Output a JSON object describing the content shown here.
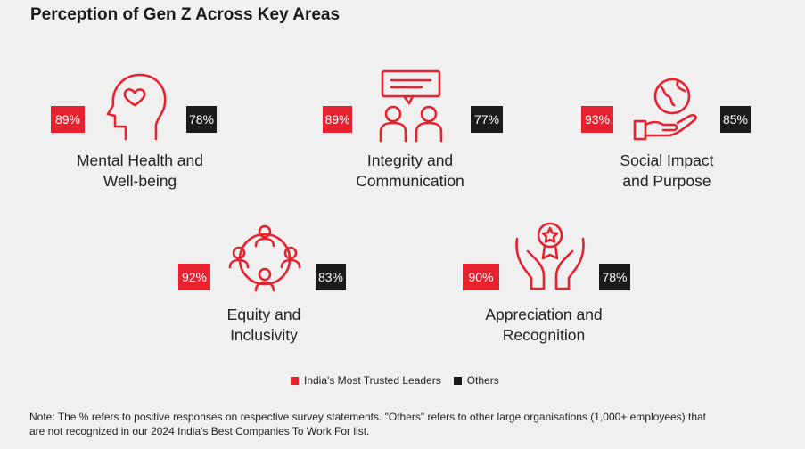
{
  "title": "Perception of Gen Z Across Key Areas",
  "colors": {
    "trusted": "#e8212e",
    "others": "#1b1b1b"
  },
  "chart_data": {
    "type": "table",
    "title": "Perception of Gen Z Across Key Areas",
    "categories": [
      "Mental Health and Well-being",
      "Integrity and Communication",
      "Social Impact and Purpose",
      "Equity and Inclusivity",
      "Appreciation and Recognition"
    ],
    "series": [
      {
        "name": "India's Most Trusted Leaders",
        "values": [
          89,
          89,
          93,
          92,
          90
        ]
      },
      {
        "name": "Others",
        "values": [
          78,
          77,
          85,
          83,
          78
        ]
      }
    ],
    "unit": "%"
  },
  "cards": [
    {
      "line1": "Mental Health and",
      "line2": "Well-being",
      "trusted": "89%",
      "others": "78%",
      "icon": "head-heart-icon"
    },
    {
      "line1": "Integrity and",
      "line2": "Communication",
      "trusted": "89%",
      "others": "77%",
      "icon": "people-speech-icon"
    },
    {
      "line1": "Social Impact",
      "line2": "and Purpose",
      "trusted": "93%",
      "others": "85%",
      "icon": "hand-globe-icon"
    },
    {
      "line1": "Equity and",
      "line2": "Inclusivity",
      "trusted": "92%",
      "others": "83%",
      "icon": "people-circle-icon"
    },
    {
      "line1": "Appreciation and",
      "line2": "Recognition",
      "trusted": "90%",
      "others": "78%",
      "icon": "hands-medal-icon"
    }
  ],
  "legend": {
    "trusted": "India's Most Trusted Leaders",
    "others": "Others"
  },
  "note": {
    "line1": "Note: The % refers to positive responses on respective survey statements. \"Others\" refers to other large organisations (1,000+ employees) that",
    "line2": "are not recognized in our 2024 India's Best Companies To Work For list."
  }
}
